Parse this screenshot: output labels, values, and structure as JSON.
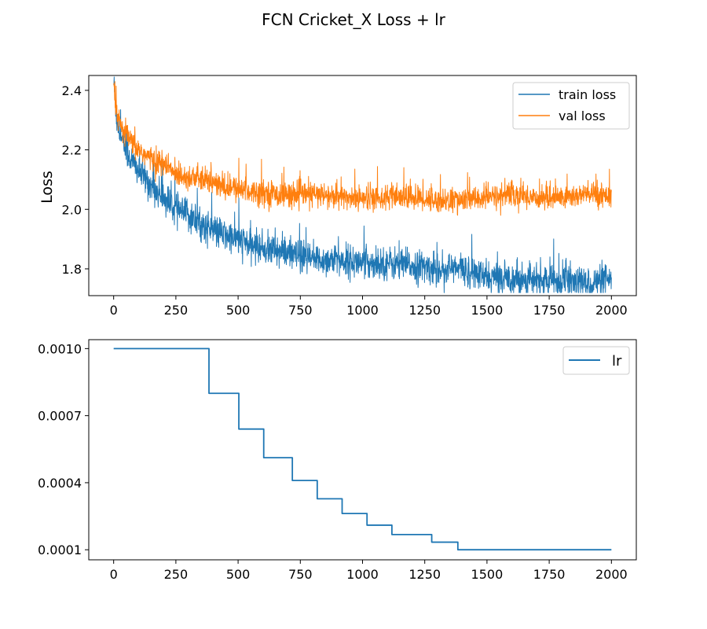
{
  "title": "FCN Cricket_X Loss + lr",
  "colors": {
    "train": "#1f77b4",
    "val": "#ff7f0e",
    "lr": "#1f77b4"
  },
  "chart_data": [
    {
      "type": "line",
      "title": "",
      "xlabel": "",
      "ylabel": "Loss",
      "xlim": [
        -100,
        2100
      ],
      "ylim": [
        1.71,
        2.45
      ],
      "xticks": [
        0,
        250,
        500,
        750,
        1000,
        1250,
        1500,
        1750,
        2000
      ],
      "xtick_labels": [
        "0",
        "250",
        "500",
        "750",
        "1000",
        "1250",
        "1500",
        "1750",
        "2000"
      ],
      "yticks": [
        1.8,
        2.0,
        2.2,
        2.4
      ],
      "ytick_labels": [
        "1.8",
        "2.0",
        "2.2",
        "2.4"
      ],
      "grid": false,
      "legend_position": "top-right",
      "legend": [
        "train loss",
        "val loss"
      ],
      "series": [
        {
          "name": "train loss",
          "x": [
            0,
            10,
            25,
            50,
            75,
            100,
            150,
            200,
            250,
            300,
            350,
            400,
            450,
            500,
            550,
            600,
            650,
            700,
            750,
            800,
            900,
            1000,
            1100,
            1200,
            1300,
            1400,
            1500,
            1600,
            1700,
            1800,
            1900,
            2000
          ],
          "y": [
            2.43,
            2.32,
            2.26,
            2.2,
            2.16,
            2.13,
            2.08,
            2.04,
            2.0,
            1.98,
            1.95,
            1.93,
            1.91,
            1.9,
            1.88,
            1.87,
            1.86,
            1.85,
            1.84,
            1.83,
            1.83,
            1.82,
            1.82,
            1.81,
            1.8,
            1.8,
            1.77,
            1.77,
            1.76,
            1.76,
            1.75,
            1.76
          ],
          "noise": 0.045
        },
        {
          "name": "val loss",
          "x": [
            0,
            10,
            25,
            50,
            75,
            100,
            150,
            200,
            250,
            300,
            350,
            400,
            450,
            500,
            550,
            600,
            650,
            700,
            750,
            800,
            900,
            1000,
            1100,
            1200,
            1300,
            1400,
            1500,
            1600,
            1700,
            1800,
            1900,
            2000
          ],
          "y": [
            2.42,
            2.33,
            2.28,
            2.25,
            2.22,
            2.2,
            2.17,
            2.15,
            2.12,
            2.11,
            2.1,
            2.09,
            2.07,
            2.07,
            2.06,
            2.06,
            2.05,
            2.05,
            2.05,
            2.05,
            2.04,
            2.04,
            2.04,
            2.04,
            2.03,
            2.03,
            2.04,
            2.05,
            2.04,
            2.04,
            2.05,
            2.05
          ],
          "noise": 0.035
        }
      ]
    },
    {
      "type": "line",
      "title": "",
      "xlabel": "",
      "ylabel": "",
      "xlim": [
        -100,
        2100
      ],
      "ylim": [
        5.5e-05,
        0.00104
      ],
      "xticks": [
        0,
        250,
        500,
        750,
        1000,
        1250,
        1500,
        1750,
        2000
      ],
      "xtick_labels": [
        "0",
        "250",
        "500",
        "750",
        "1000",
        "1250",
        "1500",
        "1750",
        "2000"
      ],
      "yticks": [
        0.0001,
        0.0004,
        0.0007,
        0.001
      ],
      "ytick_labels": [
        "0.0001",
        "0.0004",
        "0.0007",
        "0.0010"
      ],
      "grid": false,
      "legend_position": "top-right",
      "legend": [
        "lr"
      ],
      "series": [
        {
          "name": "lr",
          "x": [
            0,
            383,
            383,
            503,
            503,
            603,
            603,
            718,
            718,
            818,
            818,
            918,
            918,
            1018,
            1018,
            1118,
            1118,
            1278,
            1278,
            1383,
            1383,
            2000
          ],
          "y": [
            0.001,
            0.001,
            0.0008,
            0.0008,
            0.00064,
            0.00064,
            0.000512,
            0.000512,
            0.00041,
            0.00041,
            0.000328,
            0.000328,
            0.000262,
            0.000262,
            0.00021,
            0.00021,
            0.000168,
            0.000168,
            0.000134,
            0.000134,
            0.0001,
            0.0001
          ]
        }
      ]
    }
  ]
}
